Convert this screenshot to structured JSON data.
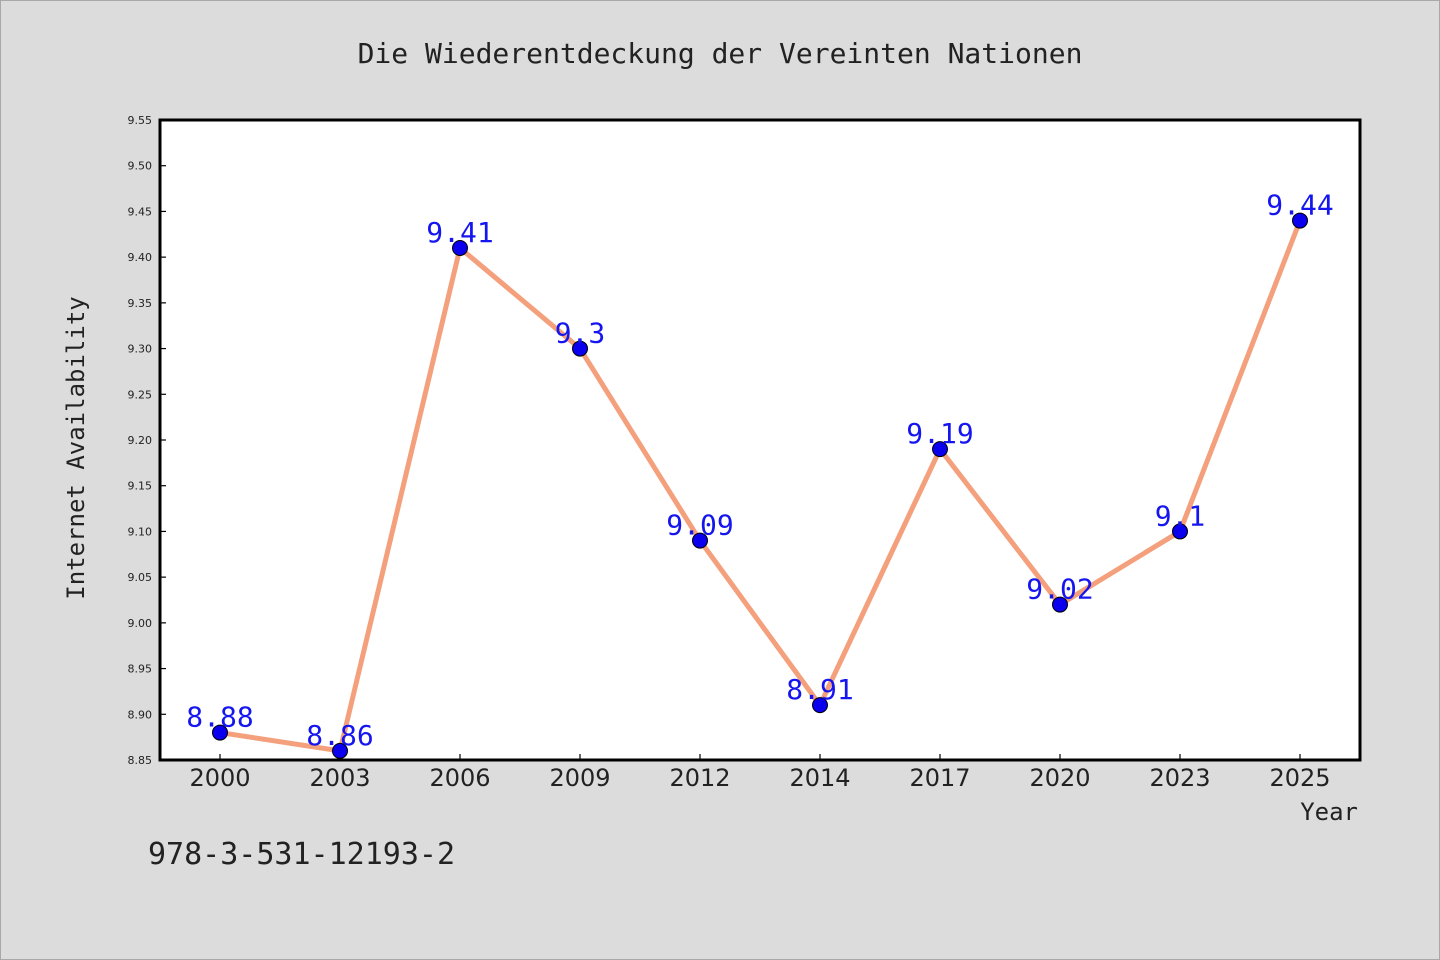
{
  "chart_data": {
    "type": "line",
    "title": "Die Wiederentdeckung der Vereinten Nationen",
    "xlabel": "Year",
    "ylabel": "Internet Availability",
    "categories": [
      "2000",
      "2003",
      "2006",
      "2009",
      "2012",
      "2014",
      "2017",
      "2020",
      "2023",
      "2025"
    ],
    "series": [
      {
        "values": [
          8.88,
          8.86,
          9.41,
          9.3,
          9.09,
          8.91,
          9.19,
          9.02,
          9.1,
          9.44
        ],
        "data_labels": [
          "8.88",
          "8.86",
          "9.41",
          "9.3",
          "9.09",
          "8.91",
          "9.19",
          "9.02",
          "9.1",
          "9.44"
        ],
        "line_color": "#f4a07c",
        "marker_color": "#0a00ee"
      }
    ],
    "ylim": [
      8.85,
      9.55
    ],
    "yticks": [
      "8.85",
      "8.90",
      "8.95",
      "9.00",
      "9.05",
      "9.10",
      "9.15",
      "9.20",
      "9.25",
      "9.30",
      "9.35",
      "9.40",
      "9.45",
      "9.50",
      "9.55"
    ],
    "grid": false,
    "label_color": "#1515f0"
  },
  "footnote": "978-3-531-12193-2"
}
